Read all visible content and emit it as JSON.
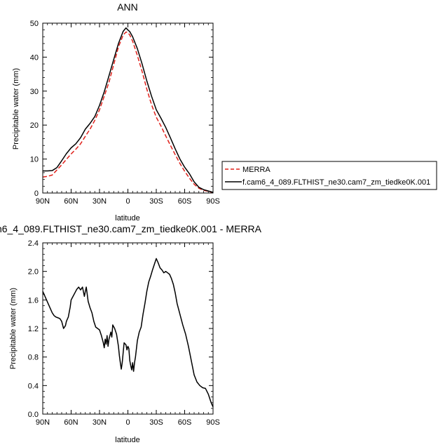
{
  "chart_data": [
    {
      "type": "line",
      "title": "ANN",
      "xlabel": "latitude",
      "ylabel": "Precipitable water (mm)",
      "xlim": [
        90,
        -90
      ],
      "ylim": [
        0,
        50
      ],
      "xticks": [
        90,
        60,
        30,
        0,
        -30,
        -60,
        -90
      ],
      "xticklabels": [
        "90N",
        "60N",
        "30N",
        "0",
        "30S",
        "60S",
        "90S"
      ],
      "yticks": [
        0,
        10,
        20,
        30,
        40,
        50
      ],
      "yticklabels": [
        "0",
        "10",
        "20",
        "30",
        "40",
        "50"
      ],
      "grid": false,
      "legend_position": "right",
      "series": [
        {
          "name": "MERRA",
          "color": "#e0201a",
          "dash": "dashed",
          "x": [
            90,
            85,
            80,
            75,
            70,
            65,
            60,
            55,
            50,
            45,
            40,
            35,
            30,
            25,
            20,
            15,
            10,
            5,
            2,
            0,
            -2,
            -5,
            -10,
            -15,
            -20,
            -25,
            -30,
            -35,
            -40,
            -45,
            -50,
            -55,
            -60,
            -65,
            -70,
            -75,
            -80,
            -85,
            -90
          ],
          "y": [
            4.7,
            4.9,
            5.3,
            6.8,
            8.3,
            9.9,
            11.5,
            12.9,
            14.5,
            16.7,
            18.8,
            21.4,
            24.5,
            28.5,
            32.6,
            37.8,
            43.0,
            46.5,
            47.4,
            47.2,
            46.5,
            44.7,
            40.5,
            35.8,
            30.6,
            26.0,
            22.3,
            19.7,
            16.8,
            14.0,
            11.3,
            8.7,
            6.4,
            4.4,
            2.6,
            1.4,
            0.8,
            0.5,
            0.1
          ]
        },
        {
          "name": "f.cam6_4_089.FLTHIST_ne30.cam7_zm_tiedke0K.001",
          "color": "#000000",
          "dash": "solid",
          "x": [
            90,
            85,
            80,
            75,
            70,
            65,
            60,
            55,
            50,
            45,
            40,
            35,
            30,
            25,
            20,
            15,
            10,
            5,
            2,
            0,
            -2,
            -5,
            -10,
            -15,
            -20,
            -25,
            -30,
            -35,
            -40,
            -45,
            -50,
            -55,
            -60,
            -65,
            -70,
            -75,
            -80,
            -85,
            -90
          ],
          "y": [
            6.5,
            6.5,
            6.6,
            7.5,
            9.5,
            11.6,
            13.3,
            14.5,
            16.3,
            18.8,
            20.5,
            22.5,
            25.8,
            29.8,
            34.5,
            39.3,
            44.0,
            47.6,
            48.6,
            48.0,
            47.5,
            46.0,
            42.5,
            38.0,
            33.0,
            28.5,
            24.5,
            22.0,
            19.3,
            16.2,
            13.0,
            10.0,
            7.6,
            5.7,
            3.3,
            1.7,
            1.0,
            0.6,
            0.2
          ]
        }
      ]
    },
    {
      "type": "line",
      "title": "m6_4_089.FLTHIST_ne30.cam7_zm_tiedke0K.001 - MERRA",
      "xlabel": "latitude",
      "ylabel": "Precipitable water (mm)",
      "xlim": [
        90,
        -90
      ],
      "ylim": [
        0,
        2.4
      ],
      "xticks": [
        90,
        60,
        30,
        0,
        -30,
        -60,
        -90
      ],
      "xticklabels": [
        "90N",
        "60N",
        "30N",
        "0",
        "30S",
        "60S",
        "90S"
      ],
      "yticks": [
        0,
        0.4,
        0.8,
        1.2,
        1.6,
        2.0,
        2.4
      ],
      "yticklabels": [
        "0.0",
        "0.4",
        "0.8",
        "1.2",
        "1.6",
        "2.0",
        "2.4"
      ],
      "grid": false,
      "series": [
        {
          "color": "#000000",
          "dash": "solid",
          "x": [
            90,
            88,
            86,
            84,
            82,
            80,
            78,
            76,
            74,
            72,
            70,
            68,
            66,
            65,
            63,
            61,
            60,
            58,
            56,
            54,
            52,
            50,
            48,
            46,
            45,
            44,
            42,
            40,
            38,
            36,
            34,
            32,
            30,
            28,
            26,
            25,
            24,
            23,
            22,
            21,
            20,
            18,
            17,
            16,
            14,
            12,
            10,
            9,
            8,
            7,
            6,
            4,
            2,
            1,
            0,
            -1,
            -2,
            -3,
            -4,
            -5,
            -6,
            -7,
            -8,
            -10,
            -12,
            -14,
            -16,
            -18,
            -20,
            -22,
            -24,
            -26,
            -28,
            -30,
            -32,
            -34,
            -36,
            -38,
            -40,
            -42,
            -44,
            -46,
            -48,
            -50,
            -52,
            -55,
            -58,
            -61,
            -64,
            -67,
            -70,
            -73,
            -76,
            -79,
            -82,
            -85,
            -88,
            -90
          ],
          "y": [
            1.72,
            1.66,
            1.6,
            1.54,
            1.48,
            1.42,
            1.38,
            1.36,
            1.35,
            1.34,
            1.3,
            1.2,
            1.24,
            1.3,
            1.36,
            1.5,
            1.6,
            1.65,
            1.7,
            1.75,
            1.78,
            1.74,
            1.78,
            1.65,
            1.72,
            1.78,
            1.58,
            1.49,
            1.42,
            1.3,
            1.22,
            1.2,
            1.18,
            1.1,
            1.0,
            0.93,
            1.05,
            0.98,
            1.1,
            0.95,
            1.05,
            1.15,
            1.08,
            1.25,
            1.2,
            1.12,
            0.95,
            0.82,
            0.72,
            0.63,
            0.72,
            1.0,
            0.97,
            0.9,
            0.95,
            0.92,
            0.75,
            0.68,
            0.62,
            0.72,
            0.6,
            0.72,
            0.8,
            1.03,
            1.15,
            1.22,
            1.4,
            1.55,
            1.72,
            1.85,
            1.93,
            2.02,
            2.1,
            2.18,
            2.12,
            2.05,
            2.02,
            1.98,
            2.0,
            1.98,
            1.96,
            1.9,
            1.82,
            1.7,
            1.55,
            1.4,
            1.25,
            1.12,
            0.95,
            0.75,
            0.55,
            0.45,
            0.4,
            0.37,
            0.36,
            0.28,
            0.16,
            0.1
          ]
        }
      ]
    }
  ]
}
